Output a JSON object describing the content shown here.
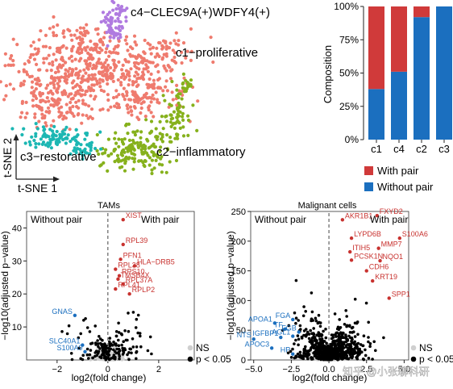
{
  "tsne": {
    "cluster_labels": {
      "c4": "c4−CLEC9A(+)WDFY4(+)",
      "c1": "c1−proliferative",
      "c2": "c2−inflammatory",
      "c3": "c3−restorative"
    },
    "axis_x": "t-SNE 1",
    "axis_y": "t-SNE 2",
    "colors": {
      "c1": "#ef7b6e",
      "c2": "#86b11c",
      "c3": "#1cb7b3",
      "c4": "#b07be0"
    }
  },
  "composition": {
    "ylabel": "Composition",
    "legend": [
      "With pair",
      "Without pair"
    ],
    "colors": {
      "with": "#d03a3a",
      "without": "#1b6fbf"
    }
  },
  "tams": {
    "title": "TAMs",
    "left_label": "Without pair",
    "right_label": "With pair",
    "xlabel": "log2(fold change)",
    "ylabel": "−log10(adjusted p−value)",
    "legend": [
      "NS",
      "p < 0.05"
    ]
  },
  "malignant": {
    "title": "Malignant cells",
    "left_label": "Without pair",
    "right_label": "With pair",
    "xlabel": "log2(fold change)",
    "ylabel": "−log10(adjusted p−value)",
    "legend": [
      "NS",
      "p < 0.05"
    ]
  },
  "watermark": "知乎 @小张聊科研",
  "chart_data": [
    {
      "type": "scatter",
      "xlabel": "t-SNE 1",
      "ylabel": "t-SNE 2",
      "series": [
        {
          "name": "c1−proliferative"
        },
        {
          "name": "c2−inflammatory"
        },
        {
          "name": "c3−restorative"
        },
        {
          "name": "c4−CLEC9A(+)WDFY4(+)"
        }
      ]
    },
    {
      "type": "bar",
      "stacked": true,
      "ylabel": "Composition",
      "categories": [
        "c1",
        "c4",
        "c2",
        "c3"
      ],
      "ylim": [
        0,
        100
      ],
      "yticks": [
        "0%",
        "25%",
        "50%",
        "75%",
        "100%"
      ],
      "series": [
        {
          "name": "Without pair",
          "values": [
            38,
            51,
            92,
            100
          ]
        },
        {
          "name": "With pair",
          "values": [
            62,
            49,
            8,
            0
          ]
        }
      ],
      "legend": "bottom"
    },
    {
      "type": "scatter",
      "title": "TAMs",
      "xlabel": "log2(fold change)",
      "ylabel": "−log10(adjusted p−value)",
      "xlim": [
        -3.2,
        3.4
      ],
      "ylim": [
        0,
        45
      ],
      "xticks": [
        -2,
        0,
        2
      ],
      "yticks": [
        10,
        20,
        30,
        40
      ],
      "cutoff_x": 0,
      "labeled_points": [
        {
          "gene": "XIST",
          "x": 0.6,
          "y": 42.5,
          "side": "up"
        },
        {
          "gene": "RPL39",
          "x": 0.6,
          "y": 35,
          "side": "up"
        },
        {
          "gene": "PFN1",
          "x": 0.5,
          "y": 30.5,
          "side": "up"
        },
        {
          "gene": "HLA−DRB5",
          "x": 1.05,
          "y": 28.5,
          "side": "up"
        },
        {
          "gene": "RPL38",
          "x": 0.3,
          "y": 27.5,
          "side": "up"
        },
        {
          "gene": "RPS10",
          "x": 0.45,
          "y": 25.5,
          "side": "up"
        },
        {
          "gene": "TMSB4X",
          "x": 0.4,
          "y": 24.5,
          "side": "up"
        },
        {
          "gene": "RPL37A",
          "x": 0.6,
          "y": 23,
          "side": "up"
        },
        {
          "gene": "RPL41",
          "x": 0.3,
          "y": 21.5,
          "side": "up"
        },
        {
          "gene": "RPLP2",
          "x": 0.85,
          "y": 20,
          "side": "up"
        },
        {
          "gene": "GNAS",
          "x": -1.3,
          "y": 13.5,
          "side": "down"
        },
        {
          "gene": "SLC40A1",
          "x": -1.0,
          "y": 4.5,
          "side": "down"
        },
        {
          "gene": "S100A9",
          "x": -0.9,
          "y": 2.5,
          "side": "down"
        }
      ],
      "legend": [
        "NS",
        "p < 0.05"
      ]
    },
    {
      "type": "scatter",
      "title": "Malignant cells",
      "xlabel": "log2(fold change)",
      "ylabel": "−log10(adjusted p−value)",
      "xlim": [
        -5.2,
        5.3
      ],
      "ylim": [
        0,
        250
      ],
      "xticks": [
        -5.0,
        -2.5,
        0.0,
        2.5,
        5.0
      ],
      "yticks": [
        0,
        50,
        100,
        150,
        200,
        250
      ],
      "cutoff_x": 0,
      "labeled_points": [
        {
          "gene": "AKR1B1",
          "x": 0.9,
          "y": 236,
          "side": "up"
        },
        {
          "gene": "FXYD2",
          "x": 3.2,
          "y": 243,
          "side": "up"
        },
        {
          "gene": "LYPD6B",
          "x": 1.5,
          "y": 205,
          "side": "up"
        },
        {
          "gene": "S100A6",
          "x": 4.7,
          "y": 205,
          "side": "up"
        },
        {
          "gene": "MMP7",
          "x": 3.3,
          "y": 188,
          "side": "up"
        },
        {
          "gene": "ITIH5",
          "x": 1.4,
          "y": 182,
          "side": "up"
        },
        {
          "gene": "PCSK1N",
          "x": 1.5,
          "y": 168,
          "side": "up"
        },
        {
          "gene": "NQO1",
          "x": 3.4,
          "y": 167,
          "side": "up"
        },
        {
          "gene": "CDH6",
          "x": 2.5,
          "y": 150,
          "side": "up"
        },
        {
          "gene": "KRT19",
          "x": 2.9,
          "y": 133,
          "side": "up"
        },
        {
          "gene": "SPP1",
          "x": 4.0,
          "y": 104,
          "side": "up"
        },
        {
          "gene": "APOA1",
          "x": -3.6,
          "y": 62,
          "side": "down"
        },
        {
          "gene": "FGA",
          "x": -2.4,
          "y": 68,
          "side": "down"
        },
        {
          "gene": "TF",
          "x": -2.9,
          "y": 52,
          "side": "down"
        },
        {
          "gene": "FGB",
          "x": -2.0,
          "y": 47,
          "side": "down"
        },
        {
          "gene": "NTS",
          "x": -5.0,
          "y": 35,
          "side": "down"
        },
        {
          "gene": "IGFBP1",
          "x": -3.2,
          "y": 38,
          "side": "down"
        },
        {
          "gene": "AGL1",
          "x": -2.4,
          "y": 40,
          "side": "down"
        },
        {
          "gene": "APOC3",
          "x": -3.8,
          "y": 20,
          "side": "down"
        },
        {
          "gene": "HP",
          "x": -2.4,
          "y": 10,
          "side": "down"
        }
      ],
      "legend": [
        "NS",
        "p < 0.05"
      ]
    }
  ]
}
